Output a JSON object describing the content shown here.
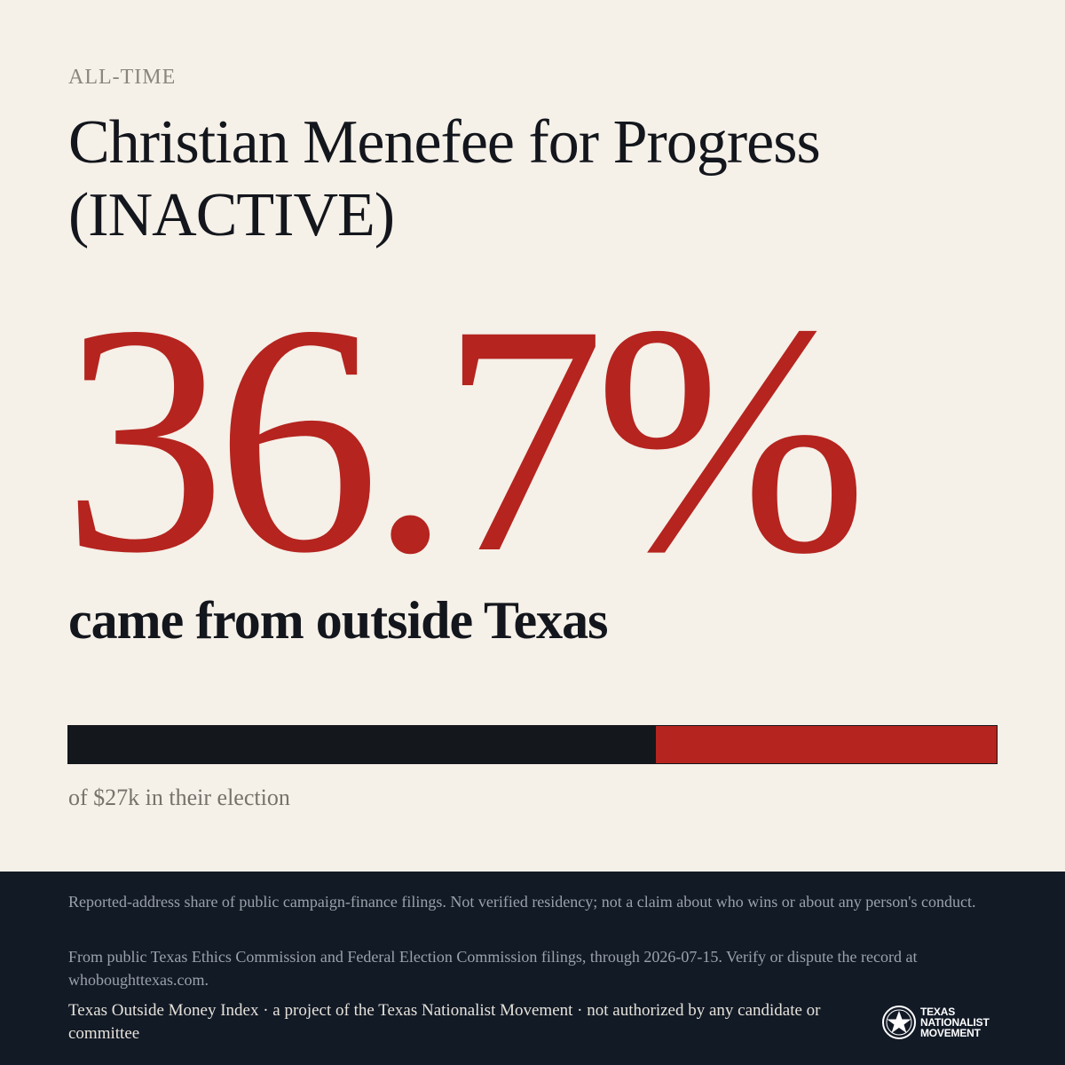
{
  "header": {
    "kicker": "ALL-TIME",
    "title": "Christian Menefee for Progress (INACTIVE)"
  },
  "stat": {
    "value": "36.7%",
    "caption": "came from outside Texas",
    "share": 0.367
  },
  "bar": {
    "subtext": "of $27k in their election"
  },
  "footer": {
    "note1": "Reported-address share of public campaign-finance filings. Not verified residency; not a claim about who wins or about any person's conduct.",
    "note2": "From public Texas Ethics Commission and Federal Election Commission filings, through 2026-07-15. Verify or dispute the record at whoboughttexas.com.",
    "credit": "Texas Outside Money Index · a project of the Texas Nationalist Movement · not authorized by any candidate or committee",
    "logo": {
      "icon": "star-seal-icon",
      "line1": "TEXAS",
      "line2": "NATIONALIST",
      "line3": "MOVEMENT"
    }
  },
  "colors": {
    "accent": "#b5241f",
    "dark": "#14171c",
    "background": "#f5f0e8",
    "footer": "#121a26"
  }
}
